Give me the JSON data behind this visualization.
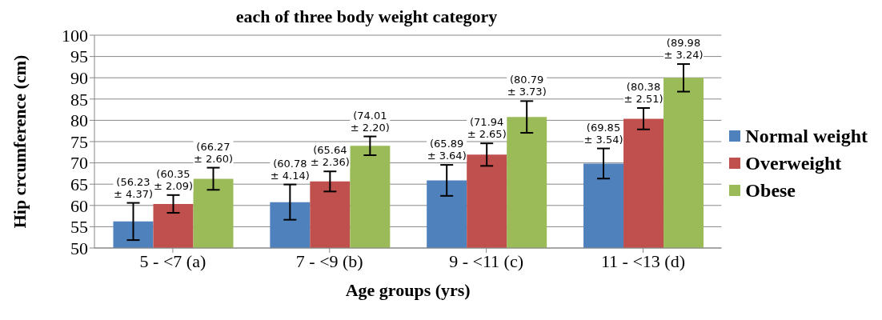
{
  "chart_data": {
    "type": "bar",
    "title": "each of three body weight category",
    "xlabel": "Age groups (yrs)",
    "ylabel": "Hip crcumference (cm)",
    "categories": [
      "5 - <7 (a)",
      "7 - <9 (b)",
      "9 - <11 (c)",
      "11 - <13 (d)"
    ],
    "series": [
      {
        "name": "Normal weight",
        "color": "#4f81bd",
        "values": [
          56.23,
          60.78,
          65.89,
          69.85
        ],
        "errors": [
          4.37,
          4.14,
          3.64,
          3.54
        ],
        "value_labels": [
          "(56.23 ± 4.37)",
          "(60.78 ± 4.14)",
          "(65.89 ± 3.64)",
          "(69.85 ± 3.54)"
        ]
      },
      {
        "name": "Overweight",
        "color": "#c0504d",
        "values": [
          60.35,
          65.64,
          71.94,
          80.38
        ],
        "errors": [
          2.09,
          2.36,
          2.65,
          2.51
        ],
        "value_labels": [
          "(60.35 ± 2.09)",
          "(65.64 ± 2.36)",
          "(71.94 ± 2.65)",
          "(80.38 ± 2.51)"
        ]
      },
      {
        "name": "Obese",
        "color": "#9bbb59",
        "values": [
          66.27,
          74.01,
          80.79,
          89.98
        ],
        "errors": [
          2.6,
          2.2,
          3.73,
          3.24
        ],
        "value_labels": [
          "(66.27  ± 2.60)",
          "(74.01 ± 2.20)",
          "(80.79 ± 3.73)",
          "(89.98 ± 3.24)"
        ]
      }
    ],
    "ylim": [
      50,
      100
    ],
    "yticks": [
      50,
      55,
      60,
      65,
      70,
      75,
      80,
      85,
      90,
      95,
      100
    ],
    "grid": "y",
    "legend": "right"
  }
}
